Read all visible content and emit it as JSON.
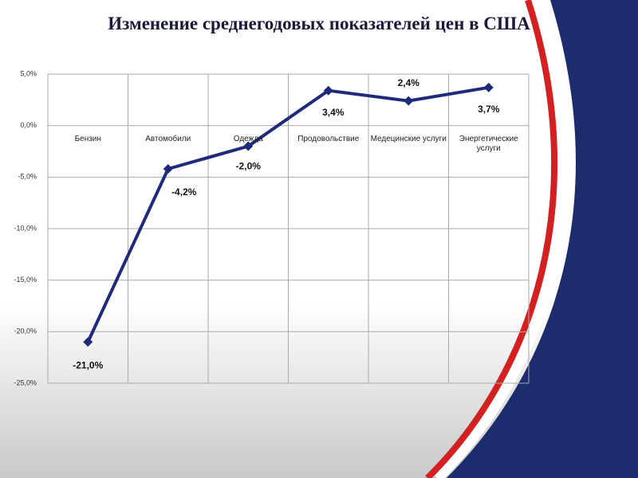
{
  "chart_data": {
    "type": "line",
    "title": "Изменение среднегодовых показателей цен в США",
    "categories": [
      "Бензин",
      "Автомобили",
      "Одежда",
      "Продовольствие",
      "Медецинские услуги",
      "Энергетические услуги"
    ],
    "series": [
      {
        "color": "#1f2a7a",
        "values": [
          -21.0,
          -4.2,
          -2.0,
          3.4,
          2.4,
          3.7
        ],
        "value_labels": [
          "-21,0%",
          "-4,2%",
          "-2,0%",
          "3,4%",
          "2,4%",
          "3,7%"
        ]
      }
    ],
    "ylim": [
      -25,
      5
    ],
    "yticks": [
      {
        "value": 5,
        "label": "5,0%"
      },
      {
        "value": 0,
        "label": "0,0%"
      },
      {
        "value": -5,
        "label": "-5,0%"
      },
      {
        "value": -10,
        "label": "-10,0%"
      },
      {
        "value": -15,
        "label": "-15,0%"
      },
      {
        "value": -20,
        "label": "-20,0%"
      },
      {
        "value": -25,
        "label": "-25,0%"
      }
    ],
    "grid": true
  }
}
